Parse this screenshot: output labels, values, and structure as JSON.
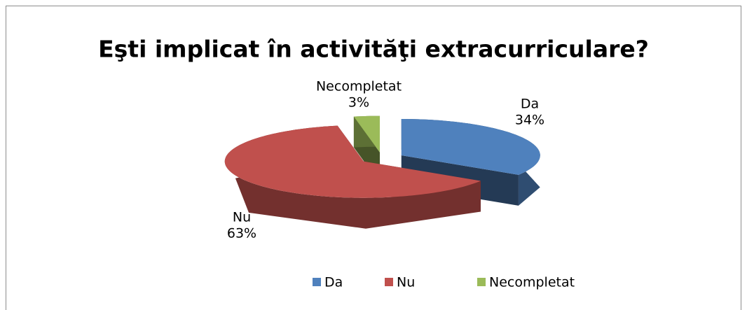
{
  "chart_data": {
    "type": "pie",
    "title": "Eşti implicat în activităţi extracurriculare?",
    "categories": [
      "Da",
      "Nu",
      "Necompletat"
    ],
    "values": [
      34,
      63,
      3
    ],
    "value_labels": [
      "34%",
      "63%",
      "3%"
    ],
    "colors": [
      "#4f81bd",
      "#c0504d",
      "#9bbb59"
    ],
    "legend": "bottom"
  }
}
